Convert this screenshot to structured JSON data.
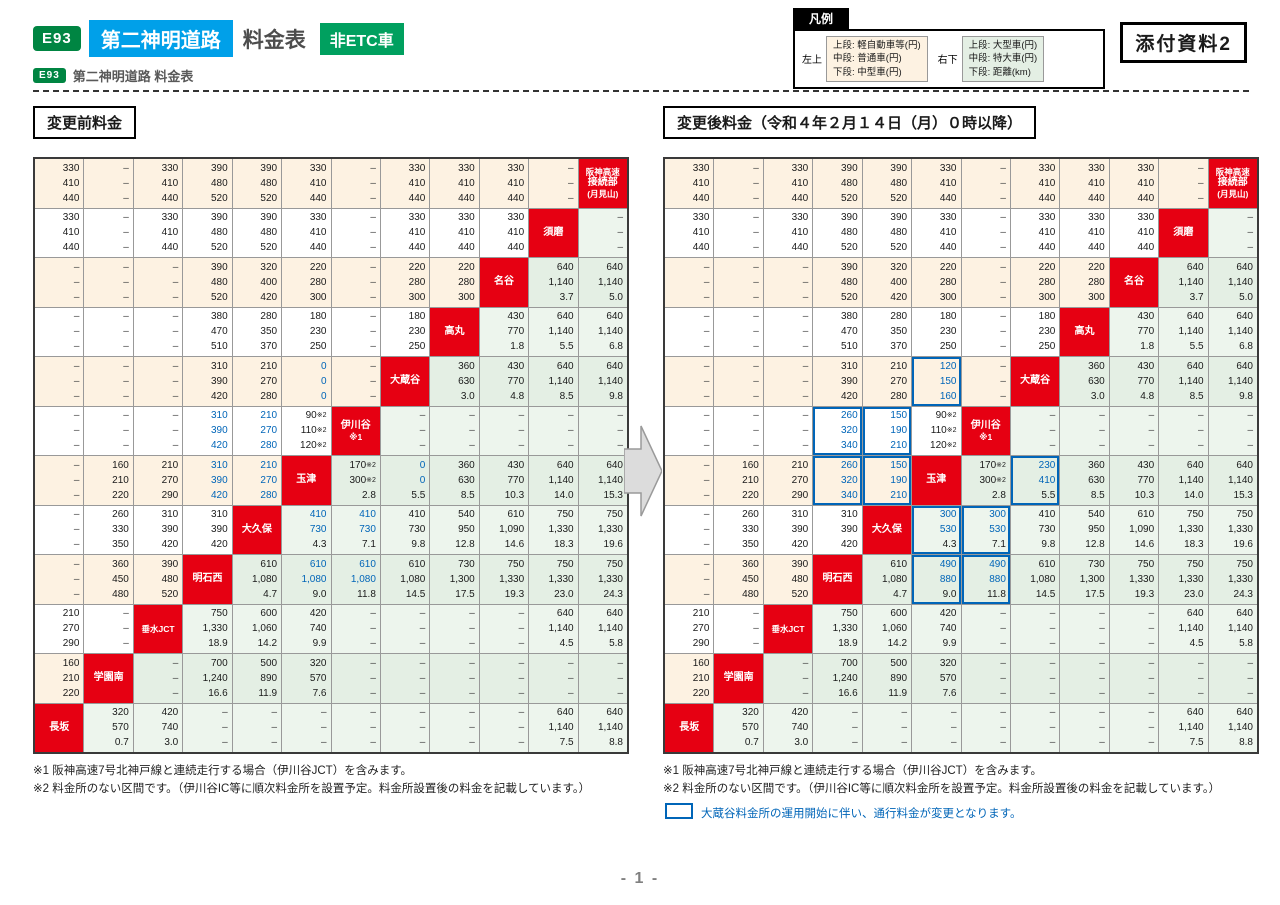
{
  "header": {
    "road_no": "E93",
    "road_name": "第二神明道路",
    "title": "料金表",
    "etc_badge": "非ETC車",
    "sub_road_no": "E93",
    "subtitle": "第二神明道路 料金表",
    "attachment": "添付資料2"
  },
  "legend": {
    "title": "凡例",
    "upper_pos": "左上",
    "lower_pos": "右下",
    "upper_lines": [
      "上段: 軽自動車等(円)",
      "中段: 普通車(円)",
      "下段: 中型車(円)"
    ],
    "lower_lines": [
      "上段: 大型車(円)",
      "中段: 特大車(円)",
      "下段: 距離(km)"
    ]
  },
  "sections": {
    "before_title": "変更前料金",
    "after_title": "変更後料金（令和４年２月１４日（月）０時以降）"
  },
  "colors": {
    "accent_blue": "#0065b8",
    "station_red": "#e60012",
    "road_badge_green": "#008542",
    "etc_green": "#00a05f",
    "road_name_blue": "#00a0e9"
  },
  "fare_tables": {
    "stations": [
      [
        "阪神高速",
        "接続部",
        "(月見山)"
      ],
      [
        "須磨"
      ],
      [
        "名谷"
      ],
      [
        "高丸"
      ],
      [
        "大蔵谷"
      ],
      [
        "伊川谷",
        "※1"
      ],
      [
        "玉津"
      ],
      [
        "大久保"
      ],
      [
        "明石西"
      ],
      [
        "垂水JCT"
      ],
      [
        "学園南"
      ],
      [
        "長坂"
      ]
    ],
    "before_rows": [
      [
        [
          "330",
          "410",
          "440"
        ],
        "-",
        [
          "330",
          "410",
          "440"
        ],
        [
          "390",
          "480",
          "520"
        ],
        [
          "390",
          "480",
          "520"
        ],
        [
          "330",
          "410",
          "440"
        ],
        "-",
        [
          "330",
          "410",
          "440"
        ],
        [
          "330",
          "410",
          "440"
        ],
        [
          "330",
          "410",
          "440"
        ],
        "-",
        "S"
      ],
      [
        [
          "330",
          "410",
          "440"
        ],
        "-",
        [
          "330",
          "410",
          "440"
        ],
        [
          "390",
          "480",
          "520"
        ],
        [
          "390",
          "480",
          "520"
        ],
        [
          "330",
          "410",
          "440"
        ],
        "-",
        [
          "330",
          "410",
          "440"
        ],
        [
          "330",
          "410",
          "440"
        ],
        [
          "330",
          "410",
          "440"
        ],
        "S",
        "-"
      ],
      [
        "-",
        "-",
        "-",
        [
          "390",
          "480",
          "520"
        ],
        [
          "320",
          "400",
          "420"
        ],
        [
          "220",
          "280",
          "300"
        ],
        "-",
        [
          "220",
          "280",
          "300"
        ],
        [
          "220",
          "280",
          "300"
        ],
        "S",
        [
          "640",
          "1,140",
          "3.7"
        ],
        [
          "640",
          "1,140",
          "5.0"
        ]
      ],
      [
        "-",
        "-",
        "-",
        [
          "380",
          "470",
          "510"
        ],
        [
          "280",
          "350",
          "370"
        ],
        [
          "180",
          "230",
          "250"
        ],
        "-",
        [
          "180",
          "230",
          "250"
        ],
        "S",
        [
          "430",
          "770",
          "1.8"
        ],
        [
          "640",
          "1,140",
          "5.5"
        ],
        [
          "640",
          "1,140",
          "6.8"
        ]
      ],
      [
        "-",
        "-",
        "-",
        [
          "310",
          "390",
          "420"
        ],
        [
          "210",
          "270",
          "280"
        ],
        [
          "0",
          "0",
          "0",
          "b"
        ],
        "-",
        "S",
        [
          "360",
          "630",
          "3.0"
        ],
        [
          "430",
          "770",
          "4.8"
        ],
        [
          "640",
          "1,140",
          "8.5"
        ],
        [
          "640",
          "1,140",
          "9.8"
        ]
      ],
      [
        "-",
        "-",
        "-",
        [
          "310",
          "390",
          "420",
          "b"
        ],
        [
          "210",
          "270",
          "280",
          "b"
        ],
        [
          "90※2",
          "110※2",
          "120※2"
        ],
        "S",
        "-",
        "-",
        "-",
        "-",
        "-"
      ],
      [
        "-",
        [
          "160",
          "210",
          "220"
        ],
        [
          "210",
          "270",
          "290"
        ],
        [
          "310",
          "390",
          "420",
          "b"
        ],
        [
          "210",
          "270",
          "280",
          "b"
        ],
        "S",
        [
          "170※2",
          "300※2",
          "2.8"
        ],
        [
          "0",
          "0",
          "5.5",
          "b"
        ],
        [
          "360",
          "630",
          "8.5"
        ],
        [
          "430",
          "770",
          "10.3"
        ],
        [
          "640",
          "1,140",
          "14.0"
        ],
        [
          "640",
          "1,140",
          "15.3"
        ]
      ],
      [
        "-",
        [
          "260",
          "330",
          "350"
        ],
        [
          "310",
          "390",
          "420"
        ],
        [
          "310",
          "390",
          "420"
        ],
        "S",
        [
          "410",
          "730",
          "4.3",
          "b"
        ],
        [
          "410",
          "730",
          "7.1",
          "b"
        ],
        [
          "410",
          "730",
          "9.8"
        ],
        [
          "540",
          "950",
          "12.8"
        ],
        [
          "610",
          "1,090",
          "14.6"
        ],
        [
          "750",
          "1,330",
          "18.3"
        ],
        [
          "750",
          "1,330",
          "19.6"
        ]
      ],
      [
        "-",
        [
          "360",
          "450",
          "480"
        ],
        [
          "390",
          "480",
          "520"
        ],
        "S",
        [
          "610",
          "1,080",
          "4.7"
        ],
        [
          "610",
          "1,080",
          "9.0",
          "b"
        ],
        [
          "610",
          "1,080",
          "11.8",
          "b"
        ],
        [
          "610",
          "1,080",
          "14.5"
        ],
        [
          "730",
          "1,300",
          "17.5"
        ],
        [
          "750",
          "1,330",
          "19.3"
        ],
        [
          "750",
          "1,330",
          "23.0"
        ],
        [
          "750",
          "1,330",
          "24.3"
        ]
      ],
      [
        [
          "210",
          "270",
          "290"
        ],
        "-",
        "S",
        [
          "750",
          "1,330",
          "18.9"
        ],
        [
          "600",
          "1,060",
          "14.2"
        ],
        [
          "420",
          "740",
          "9.9"
        ],
        "-",
        "-",
        "-",
        "-",
        [
          "640",
          "1,140",
          "4.5"
        ],
        [
          "640",
          "1,140",
          "5.8"
        ]
      ],
      [
        [
          "160",
          "210",
          "220"
        ],
        "S",
        "-",
        [
          "700",
          "1,240",
          "16.6"
        ],
        [
          "500",
          "890",
          "11.9"
        ],
        [
          "320",
          "570",
          "7.6"
        ],
        "-",
        "-",
        "-",
        "-",
        "-",
        "-"
      ],
      [
        "S",
        [
          "320",
          "570",
          "0.7"
        ],
        [
          "420",
          "740",
          "3.0"
        ],
        "-",
        "-",
        "-",
        "-",
        "-",
        "-",
        "-",
        [
          "640",
          "1,140",
          "7.5"
        ],
        [
          "640",
          "1,140",
          "8.8"
        ]
      ]
    ],
    "after_rows": [
      [
        [
          "330",
          "410",
          "440"
        ],
        "-",
        [
          "330",
          "410",
          "440"
        ],
        [
          "390",
          "480",
          "520"
        ],
        [
          "390",
          "480",
          "520"
        ],
        [
          "330",
          "410",
          "440"
        ],
        "-",
        [
          "330",
          "410",
          "440"
        ],
        [
          "330",
          "410",
          "440"
        ],
        [
          "330",
          "410",
          "440"
        ],
        "-",
        "S"
      ],
      [
        [
          "330",
          "410",
          "440"
        ],
        "-",
        [
          "330",
          "410",
          "440"
        ],
        [
          "390",
          "480",
          "520"
        ],
        [
          "390",
          "480",
          "520"
        ],
        [
          "330",
          "410",
          "440"
        ],
        "-",
        [
          "330",
          "410",
          "440"
        ],
        [
          "330",
          "410",
          "440"
        ],
        [
          "330",
          "410",
          "440"
        ],
        "S",
        "-"
      ],
      [
        "-",
        "-",
        "-",
        [
          "390",
          "480",
          "520"
        ],
        [
          "320",
          "400",
          "420"
        ],
        [
          "220",
          "280",
          "300"
        ],
        "-",
        [
          "220",
          "280",
          "300"
        ],
        [
          "220",
          "280",
          "300"
        ],
        "S",
        [
          "640",
          "1,140",
          "3.7"
        ],
        [
          "640",
          "1,140",
          "5.0"
        ]
      ],
      [
        "-",
        "-",
        "-",
        [
          "380",
          "470",
          "510"
        ],
        [
          "280",
          "350",
          "370"
        ],
        [
          "180",
          "230",
          "250"
        ],
        "-",
        [
          "180",
          "230",
          "250"
        ],
        "S",
        [
          "430",
          "770",
          "1.8"
        ],
        [
          "640",
          "1,140",
          "5.5"
        ],
        [
          "640",
          "1,140",
          "6.8"
        ]
      ],
      [
        "-",
        "-",
        "-",
        [
          "310",
          "390",
          "420"
        ],
        [
          "210",
          "270",
          "280"
        ],
        [
          "120",
          "150",
          "160",
          "x"
        ],
        "-",
        "S",
        [
          "360",
          "630",
          "3.0"
        ],
        [
          "430",
          "770",
          "4.8"
        ],
        [
          "640",
          "1,140",
          "8.5"
        ],
        [
          "640",
          "1,140",
          "9.8"
        ]
      ],
      [
        "-",
        "-",
        "-",
        [
          "260",
          "320",
          "340",
          "x"
        ],
        [
          "150",
          "190",
          "210",
          "x"
        ],
        [
          "90※2",
          "110※2",
          "120※2"
        ],
        "S",
        "-",
        "-",
        "-",
        "-",
        "-"
      ],
      [
        "-",
        [
          "160",
          "210",
          "220"
        ],
        [
          "210",
          "270",
          "290"
        ],
        [
          "260",
          "320",
          "340",
          "x"
        ],
        [
          "150",
          "190",
          "210",
          "x"
        ],
        "S",
        [
          "170※2",
          "300※2",
          "2.8"
        ],
        [
          "230",
          "410",
          "5.5",
          "x"
        ],
        [
          "360",
          "630",
          "8.5"
        ],
        [
          "430",
          "770",
          "10.3"
        ],
        [
          "640",
          "1,140",
          "14.0"
        ],
        [
          "640",
          "1,140",
          "15.3"
        ]
      ],
      [
        "-",
        [
          "260",
          "330",
          "350"
        ],
        [
          "310",
          "390",
          "420"
        ],
        [
          "310",
          "390",
          "420"
        ],
        "S",
        [
          "300",
          "530",
          "4.3",
          "x"
        ],
        [
          "300",
          "530",
          "7.1",
          "x"
        ],
        [
          "410",
          "730",
          "9.8"
        ],
        [
          "540",
          "950",
          "12.8"
        ],
        [
          "610",
          "1,090",
          "14.6"
        ],
        [
          "750",
          "1,330",
          "18.3"
        ],
        [
          "750",
          "1,330",
          "19.6"
        ]
      ],
      [
        "-",
        [
          "360",
          "450",
          "480"
        ],
        [
          "390",
          "480",
          "520"
        ],
        "S",
        [
          "610",
          "1,080",
          "4.7"
        ],
        [
          "490",
          "880",
          "9.0",
          "x"
        ],
        [
          "490",
          "880",
          "11.8",
          "x"
        ],
        [
          "610",
          "1,080",
          "14.5"
        ],
        [
          "730",
          "1,300",
          "17.5"
        ],
        [
          "750",
          "1,330",
          "19.3"
        ],
        [
          "750",
          "1,330",
          "23.0"
        ],
        [
          "750",
          "1,330",
          "24.3"
        ]
      ],
      [
        [
          "210",
          "270",
          "290"
        ],
        "-",
        "S",
        [
          "750",
          "1,330",
          "18.9"
        ],
        [
          "600",
          "1,060",
          "14.2"
        ],
        [
          "420",
          "740",
          "9.9"
        ],
        "-",
        "-",
        "-",
        "-",
        [
          "640",
          "1,140",
          "4.5"
        ],
        [
          "640",
          "1,140",
          "5.8"
        ]
      ],
      [
        [
          "160",
          "210",
          "220"
        ],
        "S",
        "-",
        [
          "700",
          "1,240",
          "16.6"
        ],
        [
          "500",
          "890",
          "11.9"
        ],
        [
          "320",
          "570",
          "7.6"
        ],
        "-",
        "-",
        "-",
        "-",
        "-",
        "-"
      ],
      [
        "S",
        [
          "320",
          "570",
          "0.7"
        ],
        [
          "420",
          "740",
          "3.0"
        ],
        "-",
        "-",
        "-",
        "-",
        "-",
        "-",
        "-",
        [
          "640",
          "1,140",
          "7.5"
        ],
        [
          "640",
          "1,140",
          "8.8"
        ]
      ]
    ]
  },
  "notes": {
    "before": [
      "※1 阪神高速7号北神戸線と連続走行する場合（伊川谷JCT）を含みます。",
      "※2 料金所のない区間です。（伊川谷IC等に順次料金所を設置予定。料金所設置後の料金を記載しています。）"
    ],
    "after": [
      "※1 阪神高速7号北神戸線と連続走行する場合（伊川谷JCT）を含みます。",
      "※2 料金所のない区間です。（伊川谷IC等に順次料金所を設置予定。料金所設置後の料金を記載しています。）"
    ],
    "change_note": "大蔵谷料金所の運用開始に伴い、通行料金が変更となります。"
  },
  "page_number": "- 1 -"
}
